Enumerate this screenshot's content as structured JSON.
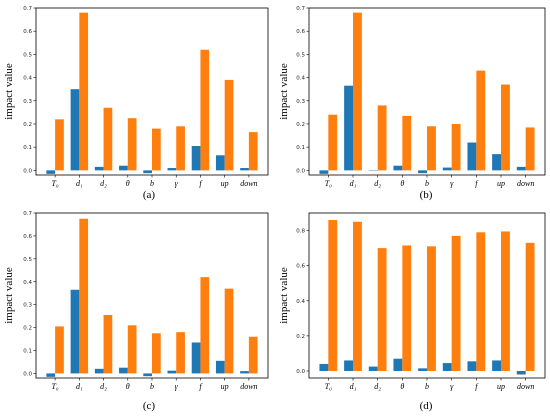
{
  "colors": {
    "blue": "#1f77b4",
    "orange": "#ff7f0e"
  },
  "chart_data": [
    {
      "type": "bar",
      "panel_label": "(a)",
      "categories": [
        "T₀",
        "d₁",
        "d₂",
        "θ",
        "b",
        "γ",
        "f",
        "up",
        "down"
      ],
      "series": [
        {
          "values": [
            -0.015,
            0.35,
            0.015,
            0.02,
            -0.012,
            0.01,
            0.105,
            0.065,
            0.01
          ]
        },
        {
          "values": [
            0.22,
            0.68,
            0.27,
            0.225,
            0.18,
            0.19,
            0.52,
            0.39,
            0.165
          ]
        }
      ],
      "ylabel": "impact value",
      "ylim": [
        -0.02,
        0.7
      ],
      "yticks": [
        0.0,
        0.1,
        0.2,
        0.3,
        0.4,
        0.5,
        0.6,
        0.7
      ],
      "ytick_labels": [
        "0.0",
        "0.1",
        "0.2",
        "0.3",
        "0.4",
        "0.5",
        "0.6",
        "0.7"
      ]
    },
    {
      "type": "bar",
      "panel_label": "(b)",
      "categories": [
        "T₀",
        "d₁",
        "d₂",
        "θ",
        "b",
        "γ",
        "f",
        "up",
        "down"
      ],
      "series": [
        {
          "values": [
            -0.015,
            0.365,
            0.0,
            0.02,
            -0.012,
            0.012,
            0.12,
            0.07,
            0.015
          ]
        },
        {
          "values": [
            0.24,
            0.68,
            0.28,
            0.235,
            0.19,
            0.2,
            0.43,
            0.37,
            0.185
          ]
        }
      ],
      "ylabel": "impact value",
      "ylim": [
        -0.02,
        0.7
      ],
      "yticks": [
        0.0,
        0.1,
        0.2,
        0.3,
        0.4,
        0.5,
        0.6,
        0.7
      ],
      "ytick_labels": [
        "0.0",
        "0.1",
        "0.2",
        "0.3",
        "0.4",
        "0.5",
        "0.6",
        "0.7"
      ]
    },
    {
      "type": "bar",
      "panel_label": "(c)",
      "categories": [
        "T₀",
        "d₁",
        "d₂",
        "θ",
        "b",
        "γ",
        "f",
        "up",
        "down"
      ],
      "series": [
        {
          "values": [
            -0.015,
            0.365,
            0.02,
            0.025,
            -0.012,
            0.012,
            0.135,
            0.055,
            0.01
          ]
        },
        {
          "values": [
            0.205,
            0.675,
            0.255,
            0.21,
            0.175,
            0.18,
            0.42,
            0.37,
            0.16
          ]
        }
      ],
      "ylabel": "impact value",
      "ylim": [
        -0.02,
        0.7
      ],
      "yticks": [
        0.0,
        0.1,
        0.2,
        0.3,
        0.4,
        0.5,
        0.6,
        0.7
      ],
      "ytick_labels": [
        "0.0",
        "0.1",
        "0.2",
        "0.3",
        "0.4",
        "0.5",
        "0.6",
        "0.7"
      ]
    },
    {
      "type": "bar",
      "panel_label": "(d)",
      "categories": [
        "T₀",
        "d₁",
        "d₂",
        "θ",
        "b",
        "γ",
        "f",
        "up",
        "down"
      ],
      "series": [
        {
          "values": [
            0.04,
            0.06,
            0.025,
            0.07,
            0.015,
            0.045,
            0.055,
            0.06,
            -0.02
          ]
        },
        {
          "values": [
            0.86,
            0.85,
            0.7,
            0.715,
            0.71,
            0.77,
            0.79,
            0.795,
            0.73
          ]
        }
      ],
      "ylabel": "impact value",
      "ylim": [
        -0.04,
        0.9
      ],
      "yticks": [
        0.0,
        0.2,
        0.4,
        0.6,
        0.8
      ],
      "ytick_labels": [
        "0.0",
        "0.2",
        "0.4",
        "0.6",
        "0.8"
      ]
    }
  ]
}
